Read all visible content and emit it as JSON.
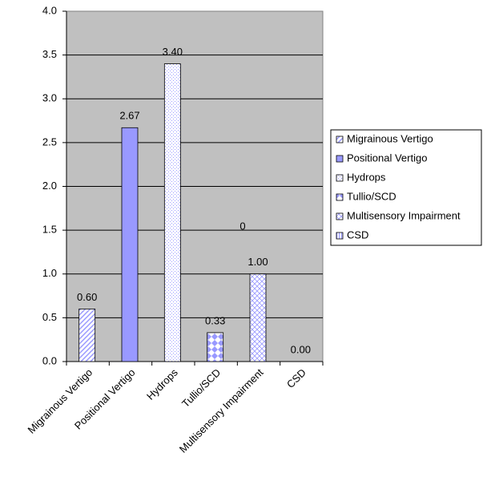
{
  "chart_data": {
    "type": "bar",
    "categories": [
      "Migrainous Vertigo",
      "Positional Vertigo",
      "Hydrops",
      "Tullio/SCD",
      "Multisensory Impairment",
      "CSD"
    ],
    "values": [
      0.6,
      2.67,
      3.4,
      0.33,
      1.0,
      0.0
    ],
    "value_labels": [
      "0.60",
      "2.67",
      "3.40",
      "0.33",
      "1.00",
      "0.00"
    ],
    "patterns": [
      "diagonal",
      "solid",
      "dots",
      "checker",
      "crosshatch",
      "vertical"
    ],
    "color": "#9999ff",
    "plot_background": "#c0c0c0",
    "ylim": [
      0,
      4
    ],
    "yticks": [
      {
        "value": 0,
        "label": "0.0"
      },
      0.5,
      {
        "value": 1,
        "label": "1.0"
      },
      1.5,
      {
        "value": 2,
        "label": "2.0"
      },
      2.5,
      {
        "value": 3,
        "label": "3.0"
      },
      3.5,
      {
        "value": 4,
        "label": "4.0"
      }
    ],
    "grid": true,
    "legend": "right",
    "annotations": [
      "0"
    ]
  }
}
